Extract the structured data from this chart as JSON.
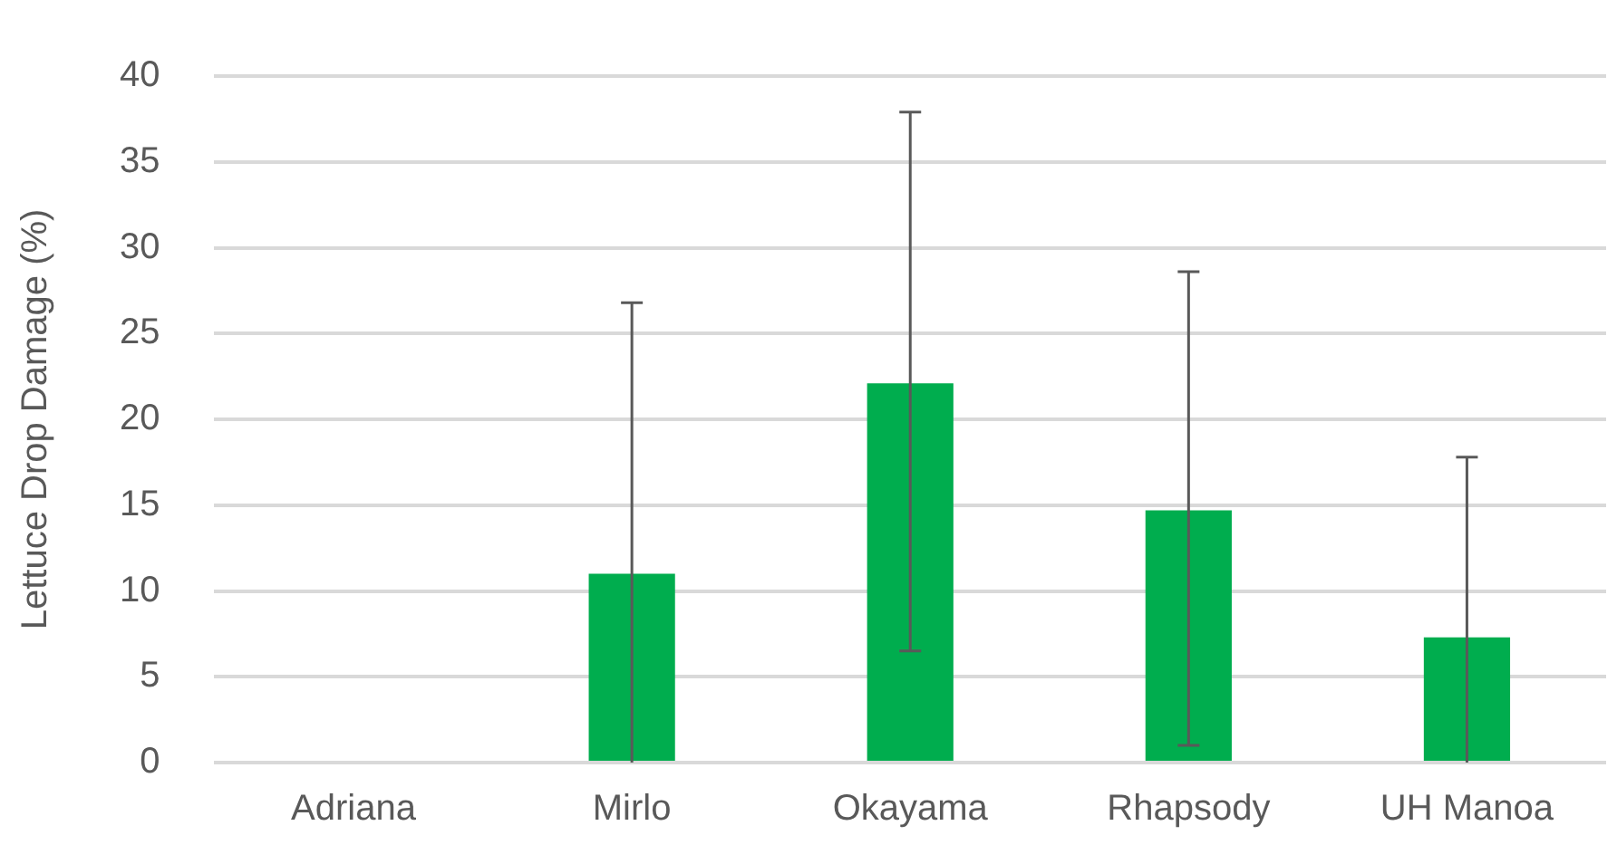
{
  "chart_data": {
    "type": "bar",
    "ylabel": "Lettuce Drop Damage (%)",
    "categories": [
      "Adriana",
      "Mirlo",
      "Okayama",
      "Rhapsody",
      "UH Manoa"
    ],
    "values": [
      0,
      11.0,
      22.1,
      14.7,
      7.3
    ],
    "errors": [
      null,
      [
        0,
        26.8
      ],
      [
        6.5,
        37.9
      ],
      [
        1.0,
        28.6
      ],
      [
        0,
        17.8
      ]
    ],
    "color": "#00ad4e",
    "ylim": [
      0,
      40
    ],
    "yticks": [
      0,
      5,
      10,
      15,
      20,
      25,
      30,
      35,
      40
    ],
    "grid": "y",
    "legend": false
  }
}
